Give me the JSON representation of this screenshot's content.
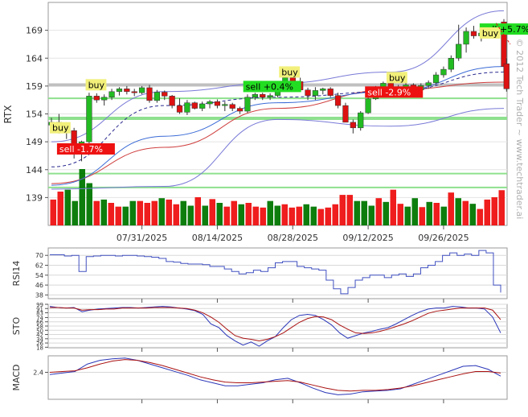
{
  "watermark": "© 2012 Tech Trader ~ www.techtrader.ai",
  "chart_data": [
    {
      "type": "candlestick",
      "ylabel": "RTX",
      "ylim": [
        134,
        174
      ],
      "y_ticks": [
        139,
        144,
        149,
        154,
        159,
        164,
        169
      ],
      "x_tick_labels": [
        "07/31/2025",
        "08/14/2025",
        "08/28/2025",
        "09/12/2025",
        "09/26/2025"
      ],
      "x_tick_days": [
        12,
        22,
        32,
        42,
        52
      ],
      "n_days": 61,
      "ohlc": [
        [
          152.0,
          153.3,
          151.0,
          152.5
        ],
        [
          152.5,
          154.0,
          150.5,
          152.0
        ],
        [
          152.0,
          152.5,
          149.5,
          151.0
        ],
        [
          151.0,
          151.5,
          146.0,
          147.0
        ],
        [
          147.0,
          149.2,
          145.5,
          149.0
        ],
        [
          149.0,
          157.8,
          148.5,
          157.2
        ],
        [
          157.2,
          157.7,
          156.0,
          156.5
        ],
        [
          156.5,
          157.5,
          155.5,
          157.0
        ],
        [
          157.0,
          158.5,
          156.5,
          158.0
        ],
        [
          158.0,
          158.8,
          157.3,
          158.5
        ],
        [
          158.5,
          159.0,
          157.5,
          158.0
        ],
        [
          158.0,
          158.5,
          157.2,
          157.8
        ],
        [
          157.8,
          159.0,
          157.5,
          158.7
        ],
        [
          158.7,
          159.2,
          156.0,
          156.4
        ],
        [
          156.4,
          158.3,
          156.0,
          157.9
        ],
        [
          157.9,
          158.2,
          156.5,
          157.2
        ],
        [
          157.2,
          157.4,
          155.0,
          155.5
        ],
        [
          155.5,
          156.8,
          154.0,
          154.3
        ],
        [
          154.3,
          156.5,
          153.8,
          156.0
        ],
        [
          156.0,
          156.2,
          154.8,
          155.0
        ],
        [
          155.0,
          156.2,
          154.5,
          155.8
        ],
        [
          155.8,
          156.5,
          155.0,
          156.2
        ],
        [
          156.2,
          156.6,
          155.0,
          155.5
        ],
        [
          155.5,
          156.2,
          154.5,
          155.7
        ],
        [
          155.7,
          156.0,
          154.5,
          155.0
        ],
        [
          155.0,
          155.3,
          154.0,
          154.5
        ],
        [
          154.5,
          157.5,
          154.2,
          157.0
        ],
        [
          157.0,
          157.8,
          156.5,
          157.5
        ],
        [
          157.5,
          157.8,
          156.5,
          157.0
        ],
        [
          157.0,
          157.7,
          156.5,
          157.3
        ],
        [
          157.3,
          159.8,
          157.0,
          159.5
        ],
        [
          159.5,
          161.0,
          159.0,
          160.5
        ],
        [
          160.5,
          161.0,
          159.2,
          159.8
        ],
        [
          159.8,
          160.5,
          158.0,
          158.3
        ],
        [
          158.3,
          158.7,
          156.5,
          157.3
        ],
        [
          157.3,
          158.8,
          156.5,
          158.2
        ],
        [
          158.2,
          158.7,
          157.5,
          158.5
        ],
        [
          158.5,
          158.8,
          157.0,
          157.3
        ],
        [
          157.3,
          157.8,
          155.0,
          155.5
        ],
        [
          155.5,
          156.0,
          152.5,
          152.5
        ],
        [
          152.5,
          153.0,
          150.5,
          151.5
        ],
        [
          151.5,
          154.5,
          151.0,
          154.2
        ],
        [
          154.2,
          157.0,
          154.0,
          156.7
        ],
        [
          156.7,
          159.0,
          156.5,
          158.7
        ],
        [
          158.7,
          159.8,
          158.2,
          159.5
        ],
        [
          159.5,
          159.8,
          158.0,
          158.5
        ],
        [
          158.5,
          159.2,
          157.5,
          158.8
        ],
        [
          158.8,
          159.7,
          158.0,
          159.2
        ],
        [
          159.2,
          159.5,
          158.0,
          158.3
        ],
        [
          158.3,
          159.5,
          157.8,
          159.1
        ],
        [
          159.1,
          160.0,
          158.5,
          159.6
        ],
        [
          159.6,
          161.5,
          159.2,
          161.0
        ],
        [
          161.0,
          162.5,
          160.5,
          162.0
        ],
        [
          162.0,
          164.5,
          161.5,
          164.0
        ],
        [
          164.0,
          170.0,
          163.5,
          166.5
        ],
        [
          166.5,
          169.5,
          165.0,
          168.8
        ],
        [
          168.8,
          169.8,
          167.5,
          168.0
        ],
        [
          168.0,
          169.0,
          167.0,
          168.5
        ],
        [
          168.5,
          169.5,
          167.7,
          168.2
        ],
        [
          168.2,
          170.3,
          167.8,
          169.7
        ],
        [
          170.5,
          171.0,
          161.5,
          162.5
        ]
      ],
      "last_candle": [
        163.0,
        164.0,
        158.0,
        158.5
      ],
      "volume": [
        0.55,
        0.72,
        0.76,
        0.52,
        1.2,
        0.9,
        0.52,
        0.55,
        0.48,
        0.4,
        0.4,
        0.52,
        0.52,
        0.48,
        0.52,
        0.58,
        0.55,
        0.45,
        0.52,
        0.42,
        0.6,
        0.42,
        0.56,
        0.48,
        0.4,
        0.52,
        0.45,
        0.48,
        0.4,
        0.38,
        0.52,
        0.42,
        0.45,
        0.38,
        0.4,
        0.45,
        0.4,
        0.35,
        0.38,
        0.45,
        0.65,
        0.65,
        0.52,
        0.52,
        0.42,
        0.58,
        0.5,
        0.76,
        0.46,
        0.4,
        0.58,
        0.39,
        0.5,
        0.48,
        0.4,
        0.7,
        0.58,
        0.52,
        0.46,
        0.35,
        0.55,
        0.6,
        0.75
      ],
      "volume_colors": [
        "r",
        "r",
        "g",
        "g",
        "g",
        "g",
        "r",
        "g",
        "r",
        "r",
        "g",
        "g",
        "r",
        "r",
        "r",
        "g",
        "r",
        "r",
        "g",
        "g",
        "r",
        "g",
        "r",
        "g",
        "r",
        "r",
        "g",
        "r",
        "r",
        "r",
        "g",
        "g",
        "r",
        "r",
        "r",
        "g",
        "g",
        "r",
        "r",
        "r",
        "r",
        "r",
        "g",
        "g",
        "g",
        "r",
        "g",
        "r",
        "r",
        "g",
        "g",
        "r",
        "g",
        "r",
        "g",
        "r",
        "g",
        "r",
        "g",
        "r",
        "r",
        "r",
        "r"
      ],
      "hlines": [
        {
          "y": 159.2,
          "color": "#c0c0c0",
          "width": 4
        },
        {
          "y": 156.8,
          "color": "#8ee08e",
          "width": 2
        },
        {
          "y": 153.2,
          "color": "#8ee08e",
          "width": 4
        },
        {
          "y": 143.3,
          "color": "#8ee08e",
          "width": 2
        },
        {
          "y": 140.8,
          "color": "#8ee08e",
          "width": 2
        }
      ],
      "signals": [
        {
          "day": 0,
          "price": 150.8,
          "text": "buy",
          "kind": "buy"
        },
        {
          "day": 1,
          "price": 147.0,
          "text": "sell -1.7%",
          "kind": "sell-red"
        },
        {
          "day": 5,
          "price": 158.5,
          "text": "buy",
          "kind": "buy"
        },
        {
          "day": 27,
          "price": 158.2,
          "text": "sell +0.4%",
          "kind": "sell-green"
        },
        {
          "day": 32,
          "price": 160.8,
          "text": "buy",
          "kind": "buy"
        },
        {
          "day": 44,
          "price": 157.2,
          "text": "sell -2.9%",
          "kind": "sell-red"
        },
        {
          "day": 47,
          "price": 159.8,
          "text": "buy",
          "kind": "buy"
        },
        {
          "day": 61,
          "price": 168.5,
          "text": "sell +5.7%",
          "kind": "sell-green"
        },
        {
          "day": 64,
          "price": 167.8,
          "text": "buy",
          "kind": "buy"
        }
      ],
      "moving_averages": {
        "red_slow": [
          141.5,
          148.0,
          155.0,
          158.3,
          159.7
        ],
        "blue_mid": [
          141.2,
          150.0,
          156.0,
          158.0,
          162.5
        ],
        "navy_dashed": [
          144.5,
          155.5,
          157.0,
          158.0,
          161.5
        ]
      },
      "bollinger": {
        "upper": [
          149.0,
          158.0,
          159.5,
          161.5,
          172.5
        ],
        "lower": [
          140.5,
          141.0,
          153.0,
          151.8,
          155.0
        ]
      },
      "colors": {
        "up": "#22bb22",
        "down": "#dd1111",
        "vol_up": "#007700",
        "vol_down": "#ee1111"
      }
    },
    {
      "type": "line",
      "ylabel": "RSI14",
      "y_ticks": [
        38,
        46,
        54,
        62,
        70
      ],
      "ylim": [
        35,
        76
      ],
      "values": [
        70.5,
        70.5,
        69.5,
        70.0,
        57.0,
        69.0,
        69.5,
        70.0,
        70.0,
        69.5,
        70.0,
        70.0,
        69.5,
        69.0,
        68.5,
        67.5,
        65.0,
        64.5,
        63.5,
        63.0,
        63.0,
        62.5,
        61.0,
        61.0,
        59.0,
        57.0,
        55.0,
        56.0,
        58.0,
        57.0,
        60.0,
        64.0,
        65.0,
        65.0,
        61.0,
        60.0,
        59.0,
        58.0,
        50.0,
        43.0,
        39.0,
        44.0,
        50.0,
        52.0,
        54.0,
        54.0,
        52.0,
        54.0,
        55.0,
        53.0,
        55.0,
        60.0,
        62.0,
        65.0,
        70.0,
        72.0,
        70.0,
        71.0,
        70.0,
        74.0,
        72.0,
        46.0,
        40.0
      ]
    },
    {
      "type": "line",
      "ylabel": "STO",
      "y_ticks": [
        18,
        26,
        34,
        42,
        50,
        58,
        66,
        74,
        83,
        91,
        99
      ],
      "ylim": [
        17,
        99
      ],
      "series": [
        {
          "color": "#2a36b8",
          "values": [
            95,
            93,
            92,
            93,
            85,
            88,
            90,
            91,
            92,
            93,
            93,
            92,
            93,
            94,
            95,
            94,
            92,
            90,
            87,
            80,
            62,
            55,
            40,
            30,
            22,
            28,
            20,
            30,
            38,
            55,
            70,
            78,
            80,
            78,
            70,
            60,
            45,
            35,
            40,
            45,
            48,
            52,
            55,
            62,
            70,
            78,
            85,
            90,
            92,
            92,
            95,
            94,
            92,
            92,
            90,
            75,
            45
          ]
        },
        {
          "color": "#aa1111",
          "values": [
            93,
            93,
            92,
            92,
            88,
            89,
            89,
            90,
            90,
            92,
            92,
            92,
            92,
            93,
            93,
            93,
            92,
            91,
            88,
            83,
            75,
            65,
            52,
            40,
            35,
            33,
            30,
            33,
            38,
            45,
            55,
            65,
            72,
            76,
            75,
            70,
            60,
            52,
            45,
            44,
            45,
            48,
            52,
            57,
            62,
            68,
            75,
            82,
            86,
            88,
            90,
            92,
            92,
            92,
            92,
            88,
            70
          ]
        }
      ]
    },
    {
      "type": "line",
      "ylabel": "MACD",
      "y_ticks": [
        2.4
      ],
      "ylim": [
        -1.2,
        4.6
      ],
      "series": [
        {
          "color": "#2a36b8",
          "values": [
            2.1,
            2.3,
            2.5,
            3.5,
            4.0,
            4.2,
            4.3,
            4.0,
            3.5,
            3.0,
            2.5,
            2.0,
            1.4,
            1.0,
            0.6,
            0.6,
            0.8,
            1.0,
            1.4,
            1.6,
            1.0,
            0.3,
            -0.3,
            -0.6,
            -0.5,
            -0.2,
            -0.1,
            0.0,
            0.2,
            0.8,
            1.4,
            2.0,
            2.6,
            3.2,
            3.3,
            2.8,
            1.9
          ]
        },
        {
          "color": "#aa1111",
          "values": [
            2.4,
            2.5,
            2.6,
            3.0,
            3.5,
            3.9,
            4.1,
            4.0,
            3.7,
            3.3,
            2.8,
            2.3,
            1.8,
            1.4,
            1.1,
            1.0,
            1.0,
            1.1,
            1.2,
            1.3,
            1.1,
            0.7,
            0.3,
            0.0,
            -0.1,
            0.0,
            0.0,
            0.1,
            0.3,
            0.6,
            1.0,
            1.4,
            1.8,
            2.2,
            2.5,
            2.5,
            2.3
          ]
        }
      ]
    }
  ]
}
